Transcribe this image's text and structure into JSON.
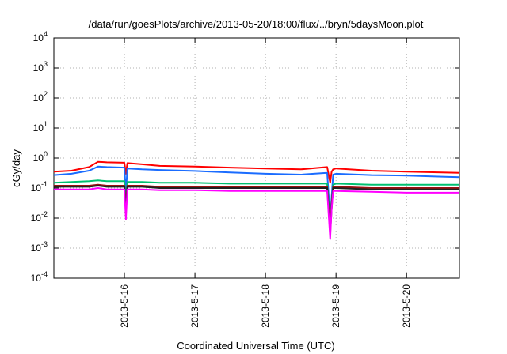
{
  "chart_data": {
    "type": "line",
    "title": "/data/run/goesPlots/archive/2013-05-20/18:00/flux/../bryn/5daysMoon.plot",
    "xlabel": "Coordinated Universal Time (UTC)",
    "ylabel": "cGy/day",
    "yscale": "log",
    "ylim": [
      0.0001,
      10000
    ],
    "y_ticks": [
      {
        "value": 0.0001,
        "base": "10",
        "exp": "-4"
      },
      {
        "value": 0.001,
        "base": "10",
        "exp": "-3"
      },
      {
        "value": 0.01,
        "base": "10",
        "exp": "-2"
      },
      {
        "value": 0.1,
        "base": "10",
        "exp": "-1"
      },
      {
        "value": 1,
        "base": "10",
        "exp": "0"
      },
      {
        "value": 10,
        "base": "10",
        "exp": "1"
      },
      {
        "value": 100,
        "base": "10",
        "exp": "2"
      },
      {
        "value": 1000,
        "base": "10",
        "exp": "3"
      },
      {
        "value": 10000,
        "base": "10",
        "exp": "4"
      }
    ],
    "xlim": [
      "2013-05-15 00:00",
      "2013-05-20 18:00"
    ],
    "x_ticks": [
      "2013-5-16",
      "2013-5-17",
      "2013-5-18",
      "2013-5-19",
      "2013-5-20"
    ],
    "x_tick_dates": [
      "2013-05-16",
      "2013-05-17",
      "2013-05-18",
      "2013-05-19",
      "2013-05-20"
    ],
    "grid": true,
    "legend": "none",
    "x": [
      "2013-05-15 00:00",
      "2013-05-15 06:00",
      "2013-05-15 12:00",
      "2013-05-15 15:00",
      "2013-05-15 18:00",
      "2013-05-16 00:00",
      "2013-05-16 00:30",
      "2013-05-16 01:00",
      "2013-05-16 06:00",
      "2013-05-16 12:00",
      "2013-05-17 00:00",
      "2013-05-17 12:00",
      "2013-05-18 00:00",
      "2013-05-18 12:00",
      "2013-05-18 21:00",
      "2013-05-18 22:00",
      "2013-05-18 22:30",
      "2013-05-18 23:00",
      "2013-05-19 00:00",
      "2013-05-19 12:00",
      "2013-05-20 00:00",
      "2013-05-20 12:00",
      "2013-05-20 18:00"
    ],
    "series": [
      {
        "color": "#ff0000",
        "values": [
          0.35,
          0.38,
          0.5,
          0.75,
          0.72,
          0.7,
          0.3,
          0.68,
          0.62,
          0.55,
          0.52,
          0.48,
          0.45,
          0.42,
          0.5,
          0.15,
          0.35,
          0.42,
          0.45,
          0.38,
          0.35,
          0.33,
          0.32
        ]
      },
      {
        "color": "#1a6cff",
        "values": [
          0.27,
          0.3,
          0.38,
          0.52,
          0.5,
          0.48,
          0.07,
          0.45,
          0.42,
          0.4,
          0.37,
          0.33,
          0.3,
          0.28,
          0.32,
          0.01,
          0.05,
          0.28,
          0.3,
          0.27,
          0.26,
          0.24,
          0.23
        ]
      },
      {
        "color": "#00c070",
        "values": [
          0.15,
          0.16,
          0.17,
          0.18,
          0.17,
          0.17,
          0.03,
          0.16,
          0.16,
          0.15,
          0.15,
          0.14,
          0.14,
          0.14,
          0.14,
          0.006,
          0.03,
          0.13,
          0.14,
          0.13,
          0.13,
          0.13,
          0.13
        ]
      },
      {
        "color": "#9a1010",
        "values": [
          0.12,
          0.12,
          0.12,
          0.13,
          0.12,
          0.12,
          0.03,
          0.12,
          0.12,
          0.11,
          0.11,
          0.11,
          0.11,
          0.11,
          0.11,
          0.004,
          0.03,
          0.11,
          0.11,
          0.1,
          0.1,
          0.1,
          0.1
        ]
      },
      {
        "color": "#202020",
        "values": [
          0.11,
          0.11,
          0.11,
          0.12,
          0.11,
          0.11,
          0.02,
          0.11,
          0.11,
          0.1,
          0.1,
          0.1,
          0.1,
          0.1,
          0.1,
          0.003,
          0.02,
          0.1,
          0.1,
          0.09,
          0.09,
          0.09,
          0.09
        ]
      },
      {
        "color": "#ff00ff",
        "values": [
          0.09,
          0.09,
          0.09,
          0.1,
          0.09,
          0.09,
          0.009,
          0.09,
          0.09,
          0.085,
          0.085,
          0.08,
          0.08,
          0.08,
          0.08,
          0.002,
          0.02,
          0.08,
          0.08,
          0.075,
          0.07,
          0.07,
          0.07
        ]
      }
    ]
  }
}
